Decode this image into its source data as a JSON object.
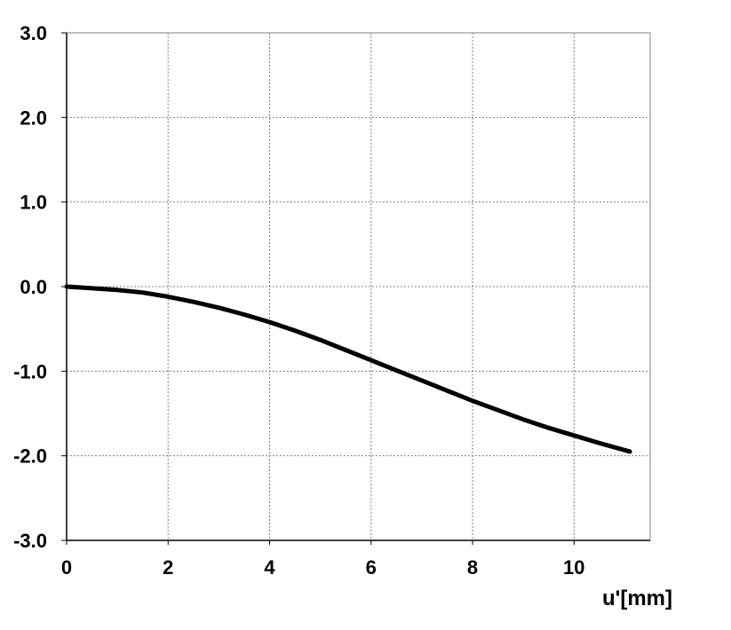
{
  "chart_data": {
    "type": "line",
    "title": "",
    "xlabel": "u'[mm]",
    "ylabel": "",
    "xlim": [
      0,
      11.5
    ],
    "ylim": [
      -3.0,
      3.0
    ],
    "x_ticks": [
      "0",
      "2",
      "4",
      "6",
      "8",
      "10"
    ],
    "y_ticks": [
      "3.0",
      "2.0",
      "1.0",
      "0.0",
      "-1.0",
      "-2.0",
      "-3.0"
    ],
    "grid": true,
    "series": [
      {
        "color": "#000000",
        "x": [
          0,
          0.5,
          1.0,
          1.5,
          2.0,
          2.5,
          3.0,
          3.5,
          4.0,
          4.5,
          5.0,
          5.5,
          6.0,
          6.5,
          7.0,
          7.5,
          8.0,
          8.5,
          9.0,
          9.5,
          10.0,
          10.5,
          11.1
        ],
        "y": [
          0.0,
          -0.02,
          -0.04,
          -0.07,
          -0.12,
          -0.18,
          -0.25,
          -0.33,
          -0.42,
          -0.52,
          -0.63,
          -0.75,
          -0.87,
          -0.99,
          -1.11,
          -1.23,
          -1.35,
          -1.46,
          -1.57,
          -1.67,
          -1.76,
          -1.85,
          -1.95
        ]
      }
    ]
  }
}
